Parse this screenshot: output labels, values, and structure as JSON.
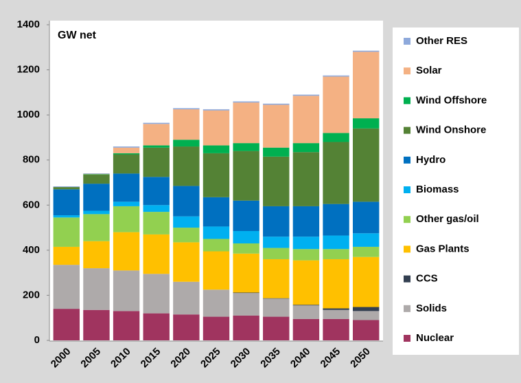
{
  "chart_data": {
    "type": "stacked_bar",
    "annotation": "GW net",
    "categories": [
      "2000",
      "2005",
      "2010",
      "2015",
      "2020",
      "2025",
      "2030",
      "2035",
      "2040",
      "2045",
      "2050"
    ],
    "ylim": [
      0,
      1400
    ],
    "yticks": [
      0,
      200,
      400,
      600,
      800,
      1000,
      1200,
      1400
    ],
    "grid": false,
    "legend": "right",
    "series": [
      {
        "name": "Nuclear",
        "color": "#a0345f",
        "values": [
          140,
          135,
          130,
          120,
          115,
          105,
          110,
          105,
          95,
          95,
          90
        ]
      },
      {
        "name": "Solids",
        "color": "#aeaaaa",
        "values": [
          195,
          185,
          180,
          175,
          145,
          120,
          100,
          80,
          60,
          40,
          40
        ]
      },
      {
        "name": "CCS",
        "color": "#333f50",
        "values": [
          0,
          0,
          0,
          0,
          0,
          0,
          2,
          2,
          3,
          7,
          18
        ]
      },
      {
        "name": "Gas Plants",
        "color": "#ffc000",
        "values": [
          80,
          120,
          170,
          175,
          175,
          170,
          173,
          173,
          197,
          218,
          222
        ]
      },
      {
        "name": "Other gas/oil",
        "color": "#92d050",
        "values": [
          130,
          120,
          115,
          100,
          65,
          55,
          45,
          50,
          50,
          45,
          45
        ]
      },
      {
        "name": "Biomass",
        "color": "#00b0f0",
        "values": [
          10,
          15,
          20,
          30,
          50,
          55,
          55,
          50,
          55,
          60,
          60
        ]
      },
      {
        "name": "Hydro",
        "color": "#0070c0",
        "values": [
          115,
          120,
          125,
          125,
          135,
          130,
          135,
          135,
          135,
          140,
          140
        ]
      },
      {
        "name": "Wind Onshore",
        "color": "#548235",
        "values": [
          10,
          40,
          85,
          130,
          175,
          195,
          220,
          220,
          240,
          275,
          325
        ]
      },
      {
        "name": "Wind Offshore",
        "color": "#00b050",
        "values": [
          0,
          2,
          5,
          10,
          30,
          35,
          35,
          40,
          40,
          40,
          45
        ]
      },
      {
        "name": "Solar",
        "color": "#f4b183",
        "values": [
          0,
          2,
          25,
          95,
          135,
          155,
          180,
          190,
          210,
          250,
          295
        ]
      },
      {
        "name": "Other RES",
        "color": "#8ea9db",
        "values": [
          3,
          2,
          5,
          5,
          5,
          5,
          5,
          5,
          5,
          5,
          5
        ]
      }
    ]
  }
}
